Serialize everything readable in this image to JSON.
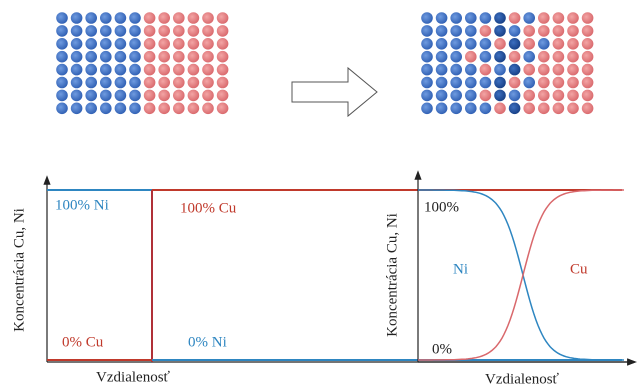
{
  "left_plot": {
    "ni_top": "100% Ni",
    "cu_top": "100% Cu",
    "cu_bottom": "0% Cu",
    "ni_bottom": "0% Ni",
    "y_label": "Koncentrácia Cu, Ni",
    "x_label": "Vzdialenosť"
  },
  "right_plot": {
    "top": "100%",
    "bottom": "0%",
    "ni": "Ni",
    "cu": "Cu",
    "y_label": "Koncentrácia Cu, Ni",
    "x_label": "Vzdialenosť"
  }
}
